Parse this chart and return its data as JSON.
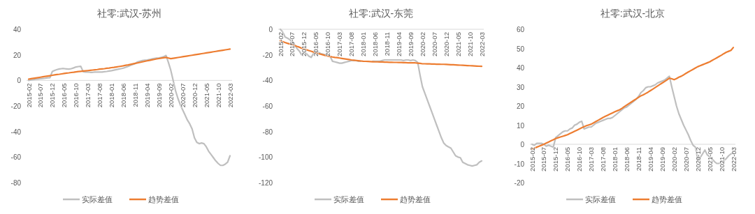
{
  "chart_data": [
    {
      "type": "line",
      "title": "社零:武汉-苏州",
      "legend": "bottom",
      "ylim": [
        -80,
        40
      ],
      "yticks": [
        -80,
        -60,
        -40,
        -20,
        0,
        20,
        40
      ],
      "categories": [
        "2015-02",
        null,
        null,
        null,
        null,
        "2015-07",
        null,
        null,
        null,
        null,
        "2015-12",
        null,
        null,
        null,
        null,
        "2016-05",
        null,
        null,
        null,
        null,
        "2016-10",
        null,
        null,
        null,
        null,
        "2017-03",
        null,
        null,
        null,
        null,
        "2017-08",
        null,
        null,
        null,
        null,
        "2018-01",
        null,
        null,
        null,
        null,
        "2018-06",
        null,
        null,
        null,
        null,
        "2018-11",
        null,
        null,
        null,
        null,
        "2019-04",
        null,
        null,
        null,
        null,
        "2019-09",
        null,
        null,
        null,
        null,
        "2020-02",
        null,
        null,
        null,
        null,
        "2020-07",
        null,
        null,
        null,
        null,
        "2020-12",
        null,
        null,
        null,
        null,
        "2021-05",
        null,
        null,
        null,
        null,
        "2021-10",
        null,
        null,
        null,
        null,
        "2022-03"
      ],
      "series": [
        {
          "name": "实际差值",
          "color": "#bfbfbf",
          "values": [
            0,
            0.3,
            0.6,
            0.9,
            1.1,
            1.3,
            1.5,
            1.7,
            2,
            2.2,
            7,
            7.8,
            8.5,
            9,
            9.2,
            9.2,
            9,
            8.8,
            9.2,
            9.8,
            10.5,
            10.8,
            11,
            6.8,
            6.5,
            6.5,
            6.3,
            6.3,
            6.5,
            6.5,
            6.5,
            6.5,
            6.8,
            7,
            7.3,
            7.6,
            8,
            8.4,
            8.8,
            9.2,
            9.6,
            10.3,
            11,
            11.8,
            12.5,
            13.2,
            14.5,
            15,
            15.5,
            15.8,
            16,
            16.3,
            16.8,
            17.2,
            17.4,
            17.6,
            18,
            18.5,
            19.5,
            14,
            8,
            0,
            -8,
            -14,
            -19,
            -23,
            -27,
            -31,
            -34,
            -38,
            -45,
            -48.5,
            -49.5,
            -49,
            -49.5,
            -52,
            -55.5,
            -58,
            -60.5,
            -63,
            -65,
            -66.5,
            -66.5,
            -65.5,
            -64,
            -59
          ]
        },
        {
          "name": "趋势差值",
          "color": "#ed7d31",
          "values": [
            1,
            1.3,
            1.6,
            1.9,
            2.2,
            2.5,
            2.8,
            3.1,
            3.4,
            3.7,
            4,
            4.3,
            4.6,
            4.8,
            5.1,
            5.4,
            5.7,
            5.9,
            6.2,
            6.4,
            6.7,
            6.9,
            7.1,
            7.3,
            7.5,
            7.7,
            7.9,
            8.1,
            8.3,
            8.5,
            8.8,
            9,
            9.2,
            9.5,
            9.7,
            10,
            10.2,
            10.5,
            10.8,
            11.1,
            11.4,
            11.8,
            12.1,
            12.5,
            12.9,
            13.3,
            13.7,
            14.1,
            14.5,
            14.9,
            15.3,
            15.7,
            16.1,
            16.4,
            16.8,
            17.1,
            17.4,
            17.7,
            18,
            17.5,
            17,
            17.3,
            17.6,
            17.9,
            18.2,
            18.5,
            18.8,
            19.1,
            19.4,
            19.7,
            20,
            20.3,
            20.6,
            20.9,
            21.2,
            21.5,
            21.8,
            22.1,
            22.4,
            22.7,
            23,
            23.3,
            23.6,
            23.9,
            24.2,
            24.5
          ]
        }
      ]
    },
    {
      "type": "line",
      "title": "社零:武汉-东莞",
      "legend": "bottom",
      "ylim": [
        -120,
        0
      ],
      "yticks": [
        -120,
        -100,
        -80,
        -60,
        -40,
        -20,
        0
      ],
      "categories": [
        "2015-02",
        null,
        null,
        null,
        null,
        "2015-07",
        null,
        null,
        null,
        null,
        "2015-12",
        null,
        null,
        null,
        null,
        "2016-05",
        null,
        null,
        null,
        null,
        "2016-10",
        null,
        null,
        null,
        null,
        "2017-03",
        null,
        null,
        null,
        null,
        "2017-08",
        null,
        null,
        null,
        null,
        "2018-01",
        null,
        null,
        null,
        null,
        "2018-06",
        null,
        null,
        null,
        null,
        "2018-11",
        null,
        null,
        null,
        null,
        "2019-04",
        null,
        null,
        null,
        null,
        "2019-09",
        null,
        null,
        null,
        null,
        "2020-02",
        null,
        null,
        null,
        null,
        "2020-07",
        null,
        null,
        null,
        null,
        "2020-12",
        null,
        null,
        null,
        null,
        "2021-05",
        null,
        null,
        null,
        null,
        "2021-10",
        null,
        null,
        null,
        null,
        "2022-03"
      ],
      "series": [
        {
          "name": "实际差值",
          "color": "#bfbfbf",
          "values": [
            0,
            -2,
            -6,
            -7,
            -8,
            -10,
            -12,
            -15,
            -17,
            -20,
            -18,
            -19,
            -21,
            -22,
            -19,
            -17,
            -18,
            -19,
            -19.5,
            -20,
            -20,
            -21,
            -25,
            -25.5,
            -26,
            -26.5,
            -26.5,
            -26,
            -25.5,
            -25,
            -24.5,
            -24.5,
            -24.5,
            -25,
            -25,
            null,
            null,
            null,
            null,
            -25,
            -25,
            -25,
            -25,
            -24.5,
            -24,
            -24,
            -24,
            -24,
            -24,
            -24,
            -24,
            -24,
            -24.5,
            -24,
            -24,
            -24.5,
            -24,
            -24.5,
            -26,
            -36,
            -45,
            -50,
            -55,
            -60,
            -65,
            -70,
            -75,
            -80,
            -85,
            -89,
            -91,
            -92,
            -93,
            -96,
            -99,
            -100,
            -100.5,
            -104,
            -105,
            -106,
            -106.5,
            -107,
            -106.5,
            -106,
            -104,
            -103
          ]
        },
        {
          "name": "趋势差值",
          "color": "#ed7d31",
          "values": [
            -9,
            -9.7,
            -10.4,
            -11,
            -11.5,
            -12,
            -12.7,
            -13.4,
            -14,
            -14.8,
            -15.5,
            -16,
            -16.6,
            -17.2,
            -17.8,
            -18.5,
            -19,
            -19.5,
            -20,
            -20.5,
            -21,
            -21.3,
            -21.7,
            -22,
            -22.2,
            -22.5,
            -22.8,
            -23.1,
            -23.4,
            -23.7,
            -24,
            -24.2,
            -24.4,
            -24.6,
            -24.8,
            -25,
            -25.1,
            -25.2,
            -25.3,
            -25.4,
            -25.5,
            -25.5,
            -25.6,
            -25.6,
            -25.7,
            -25.7,
            -25.8,
            -25.8,
            -25.9,
            -25.9,
            -26,
            -26,
            -26.1,
            -26.1,
            -26.2,
            -26.2,
            -26.3,
            -26.3,
            -26.5,
            -26.7,
            -27,
            -27,
            -27.1,
            -27.1,
            -27.2,
            -27.2,
            -27.3,
            -27.3,
            -27.4,
            -27.4,
            -27.5,
            -27.6,
            -27.7,
            -27.8,
            -27.9,
            -28,
            -28.1,
            -28.2,
            -28.3,
            -28.4,
            -28.5,
            -28.6,
            -28.7,
            -28.8,
            -28.9,
            -29
          ]
        }
      ]
    },
    {
      "type": "line",
      "title": "社零:武汉-北京",
      "legend": "bottom",
      "ylim": [
        -20,
        60
      ],
      "yticks": [
        -20,
        -10,
        0,
        10,
        20,
        30,
        40,
        50,
        60
      ],
      "categories": [
        "2015-02",
        null,
        null,
        null,
        null,
        "2015-07",
        null,
        null,
        null,
        null,
        "2015-12",
        null,
        null,
        null,
        null,
        "2016-05",
        null,
        null,
        null,
        null,
        "2016-10",
        null,
        null,
        null,
        null,
        "2017-03",
        null,
        null,
        null,
        null,
        "2017-08",
        null,
        null,
        null,
        null,
        "2018-01",
        null,
        null,
        null,
        null,
        "2018-06",
        null,
        null,
        null,
        null,
        "2018-11",
        null,
        null,
        null,
        null,
        "2019-04",
        null,
        null,
        null,
        null,
        "2019-09",
        null,
        null,
        null,
        null,
        "2020-02",
        null,
        null,
        null,
        null,
        "2020-07",
        null,
        null,
        null,
        null,
        "2020-12",
        null,
        null,
        null,
        null,
        "2021-05",
        null,
        null,
        null,
        null,
        "2021-10",
        null,
        null,
        null,
        null,
        "2022-03"
      ],
      "series": [
        {
          "name": "实际差值",
          "color": "#bfbfbf",
          "values": [
            0,
            -0.5,
            0.5,
            0.5,
            0.5,
            0,
            -1,
            -0.5,
            -1,
            -1.5,
            3.5,
            4.5,
            5.5,
            6.5,
            7,
            7,
            8,
            8.5,
            10,
            10.5,
            11.5,
            12,
            8,
            8.5,
            9,
            9,
            10,
            11,
            11.5,
            12,
            12.5,
            13,
            13.5,
            13.5,
            14,
            15,
            16,
            17,
            18,
            19,
            19.5,
            20.5,
            21.5,
            22.5,
            23.5,
            25,
            27,
            28,
            29.5,
            30,
            30,
            30.5,
            31,
            32,
            32.5,
            33,
            33.5,
            34.5,
            35.5,
            30,
            25,
            20,
            16,
            13,
            10,
            7.5,
            5,
            2,
            -0.5,
            -1.5,
            -8,
            -7,
            -5,
            -3,
            -5.5,
            -6.5,
            -7.5,
            -9,
            -10,
            -10,
            -9,
            -8.5,
            -7.5,
            -6,
            -5,
            -4.5
          ]
        },
        {
          "name": "趋势差值",
          "color": "#ed7d31",
          "values": [
            -2.5,
            -2,
            -1.5,
            -1,
            -0.5,
            0,
            0.6,
            1.2,
            1.8,
            2.4,
            3,
            3.4,
            3.8,
            4.2,
            4.6,
            5,
            5.6,
            6.2,
            6.8,
            7.4,
            8,
            8.6,
            9.2,
            9.7,
            10.1,
            10.5,
            11.2,
            11.9,
            12.6,
            13.3,
            14,
            14.6,
            15.2,
            15.8,
            16.4,
            17,
            17.5,
            18,
            18.8,
            19.7,
            20.5,
            21.3,
            22.1,
            22.9,
            23.7,
            24.5,
            25.3,
            25.8,
            26.5,
            27.2,
            28,
            28.8,
            29.6,
            30.4,
            31.2,
            32,
            32.8,
            33.6,
            34.5,
            34.2,
            33.7,
            34.3,
            35,
            35.5,
            36.2,
            37,
            37.7,
            38.4,
            39.1,
            39.8,
            40.5,
            41,
            41.5,
            42,
            42.5,
            43,
            43.7,
            44.4,
            45.1,
            45.8,
            46.5,
            47.3,
            48,
            48.5,
            49,
            50.5
          ]
        }
      ]
    }
  ]
}
